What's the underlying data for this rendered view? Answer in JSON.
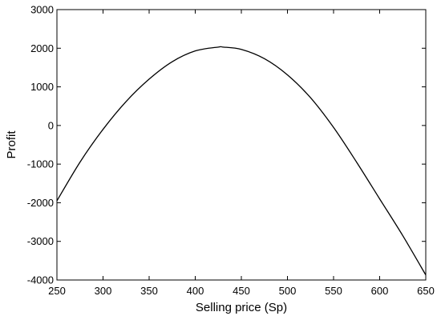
{
  "chart_data": {
    "type": "line",
    "title": "",
    "xlabel": "Selling price (Sp)",
    "ylabel": "Profit",
    "xlim": [
      250,
      650
    ],
    "ylim": [
      -4000,
      3000
    ],
    "xticks": [
      250,
      300,
      350,
      400,
      450,
      500,
      550,
      600,
      650
    ],
    "yticks": [
      -4000,
      -3000,
      -2000,
      -1000,
      0,
      1000,
      2000,
      3000
    ],
    "grid": false,
    "legend": "none",
    "line_color": "#000000",
    "series": [
      {
        "x": [
          250,
          275,
          300,
          325,
          350,
          375,
          400,
          425,
          430,
          450,
          475,
          500,
          525,
          550,
          575,
          600,
          625,
          650
        ],
        "y": [
          -1950,
          -950,
          -100,
          620,
          1200,
          1650,
          1930,
          2030,
          2030,
          1970,
          1730,
          1310,
          720,
          -50,
          -950,
          -1900,
          -2850,
          -3870
        ]
      }
    ]
  }
}
